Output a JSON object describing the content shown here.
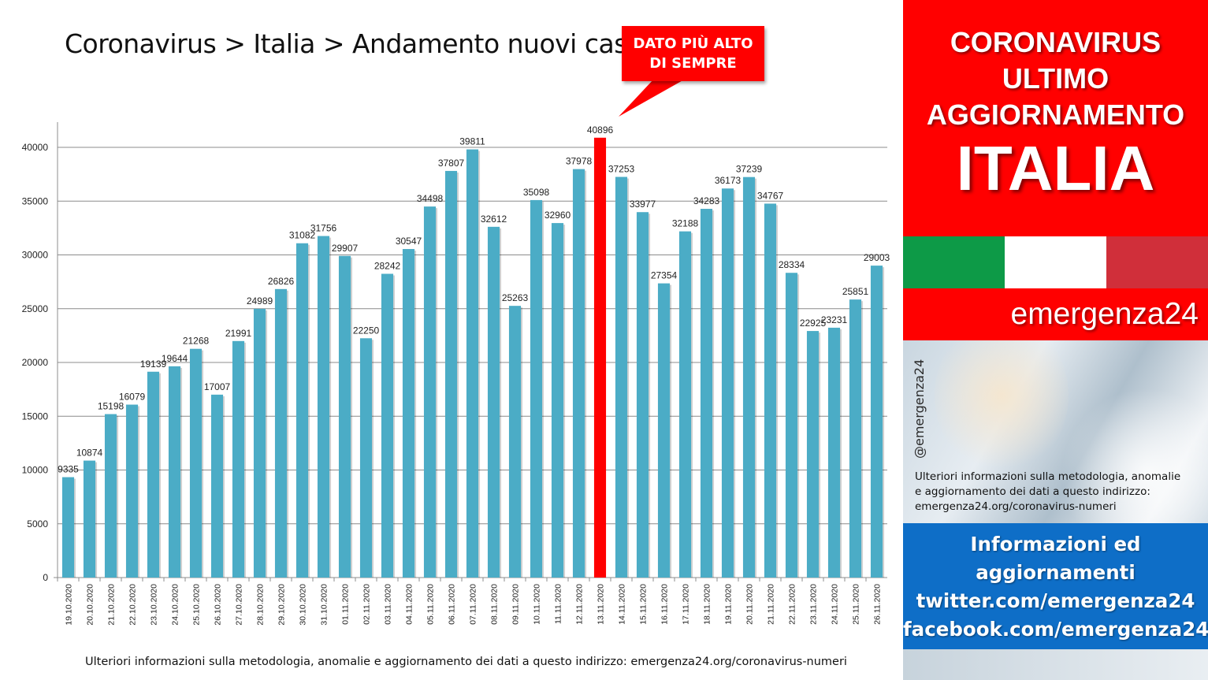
{
  "title": "Coronavirus > Italia > Andamento nuovi casi",
  "callout": {
    "line1": "DATO PIÙ ALTO",
    "line2": "DI SEMPRE"
  },
  "footer_note": "Ulteriori informazioni sulla metodologia, anomalie e aggiornamento dei dati a questo indirizzo: emergenza24.org/coronavirus-numeri",
  "side": {
    "line1": "CORONAVIRUS",
    "line2": "ULTIMO",
    "line3": "AGGIORNAMENTO",
    "country": "ITALIA",
    "brand": "emergenza24",
    "handle": "@emergenza24",
    "info_line1": "Ulteriori informazioni sulla metodologia, anomalie",
    "info_line2": "e aggiornamento dei dati a questo indirizzo:",
    "info_line3": "emergenza24.org/coronavirus-numeri",
    "social_line1": "Informazioni ed",
    "social_line2": "aggiornamenti",
    "social_line3": "twitter.com/emergenza24",
    "social_line4": "facebook.com/emergenza24"
  },
  "colors": {
    "bar": "#4bacc6",
    "highlight_bar": "#ff0000",
    "accent_red": "#ff0000",
    "social_blue": "#0e6ec7",
    "flag_green": "#0d9a47",
    "flag_white": "#ffffff",
    "flag_red": "#d02f3a"
  },
  "chart_data": {
    "type": "bar",
    "categories": [
      "19.10.2020",
      "20.10.2020",
      "21.10.2020",
      "22.10.2020",
      "23.10.2020",
      "24.10.2020",
      "25.10.2020",
      "26.10.2020",
      "27.10.2020",
      "28.10.2020",
      "29.10.2020",
      "30.10.2020",
      "31.10.2020",
      "01.11.2020",
      "02.11.2020",
      "03.11.2020",
      "04.11.2020",
      "05.11.2020",
      "06.11.2020",
      "07.11.2020",
      "08.11.2020",
      "09.11.2020",
      "10.11.2020",
      "11.11.2020",
      "12.11.2020",
      "13.11.2020",
      "14.11.2020",
      "15.11.2020",
      "16.11.2020",
      "17.11.2020",
      "18.11.2020",
      "19.11.2020",
      "20.11.2020",
      "21.11.2020",
      "22.11.2020",
      "23.11.2020",
      "24.11.2020",
      "25.11.2020",
      "26.11.2020"
    ],
    "values": [
      9335,
      10874,
      15198,
      16079,
      19139,
      19644,
      21268,
      17007,
      21991,
      24989,
      26826,
      31082,
      31756,
      29907,
      22250,
      28242,
      30547,
      34498,
      37807,
      39811,
      32612,
      25263,
      35098,
      32960,
      37978,
      40896,
      37253,
      33977,
      27354,
      32188,
      34283,
      36173,
      37239,
      34767,
      28334,
      22925,
      23231,
      25851,
      29003
    ],
    "highlight_index": 25,
    "yticks": [
      0,
      5000,
      10000,
      15000,
      20000,
      25000,
      30000,
      35000,
      40000
    ],
    "ylim": [
      0,
      42500
    ],
    "grid": true,
    "legend": false
  }
}
